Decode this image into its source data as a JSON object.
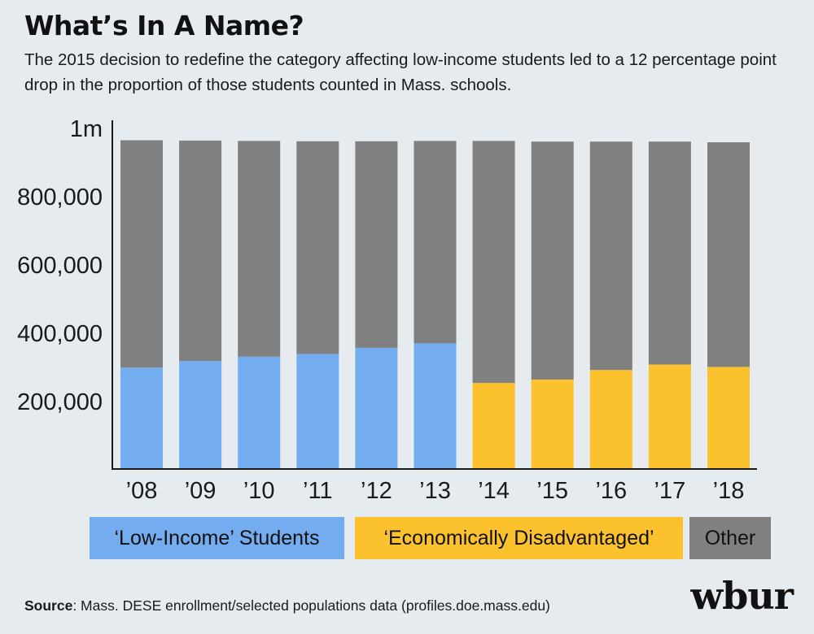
{
  "title": "What’s In A Name?",
  "subtitle": "The 2015 decision to redefine the category affecting low-income students led to a 12 percentage point drop in the proportion of those students counted in Mass. schools.",
  "source": {
    "label": "Source",
    "text": ": Mass. DESE enrollment/selected populations data (profiles.doe.mass.edu)"
  },
  "logo": "wbur",
  "colors": {
    "low_income": "#74acf0",
    "econ_dis": "#fcc22d",
    "other": "#808080",
    "axis": "#1a1a1a",
    "background": "#e6ebf0"
  },
  "legend": [
    {
      "label": "‘Low-Income’ Students",
      "color_key": "low_income"
    },
    {
      "label": "‘Economically Disadvantaged’",
      "color_key": "econ_dis"
    },
    {
      "label": "Other",
      "color_key": "other"
    }
  ],
  "chart_data": {
    "type": "bar",
    "stacked": true,
    "categories": [
      "’08",
      "’09",
      "’10",
      "’11",
      "’12",
      "’13",
      "’14",
      "’15",
      "’16",
      "’17",
      "’18"
    ],
    "ylim": [
      0,
      1000000
    ],
    "yticks": [
      {
        "value": 200000,
        "label": "200,000"
      },
      {
        "value": 400000,
        "label": "400,000"
      },
      {
        "value": 600000,
        "label": "600,000"
      },
      {
        "value": 800000,
        "label": "800,000"
      },
      {
        "value": 1000000,
        "label": "1m"
      }
    ],
    "grid": false,
    "legend_position": "bottom",
    "series": [
      {
        "name": "‘Low-Income’ Students",
        "color_key": "low_income",
        "values": [
          297000,
          316000,
          329000,
          337000,
          355000,
          368000,
          null,
          null,
          null,
          null,
          null
        ]
      },
      {
        "name": "‘Economically Disadvantaged’",
        "color_key": "econ_dis",
        "values": [
          null,
          null,
          null,
          null,
          null,
          null,
          252000,
          262000,
          290000,
          306000,
          299000
        ]
      },
      {
        "name": "Other",
        "color_key": "other",
        "values": [
          666000,
          646000,
          632000,
          623000,
          605000,
          593000,
          709000,
          697000,
          669000,
          653000,
          658000
        ]
      }
    ]
  }
}
